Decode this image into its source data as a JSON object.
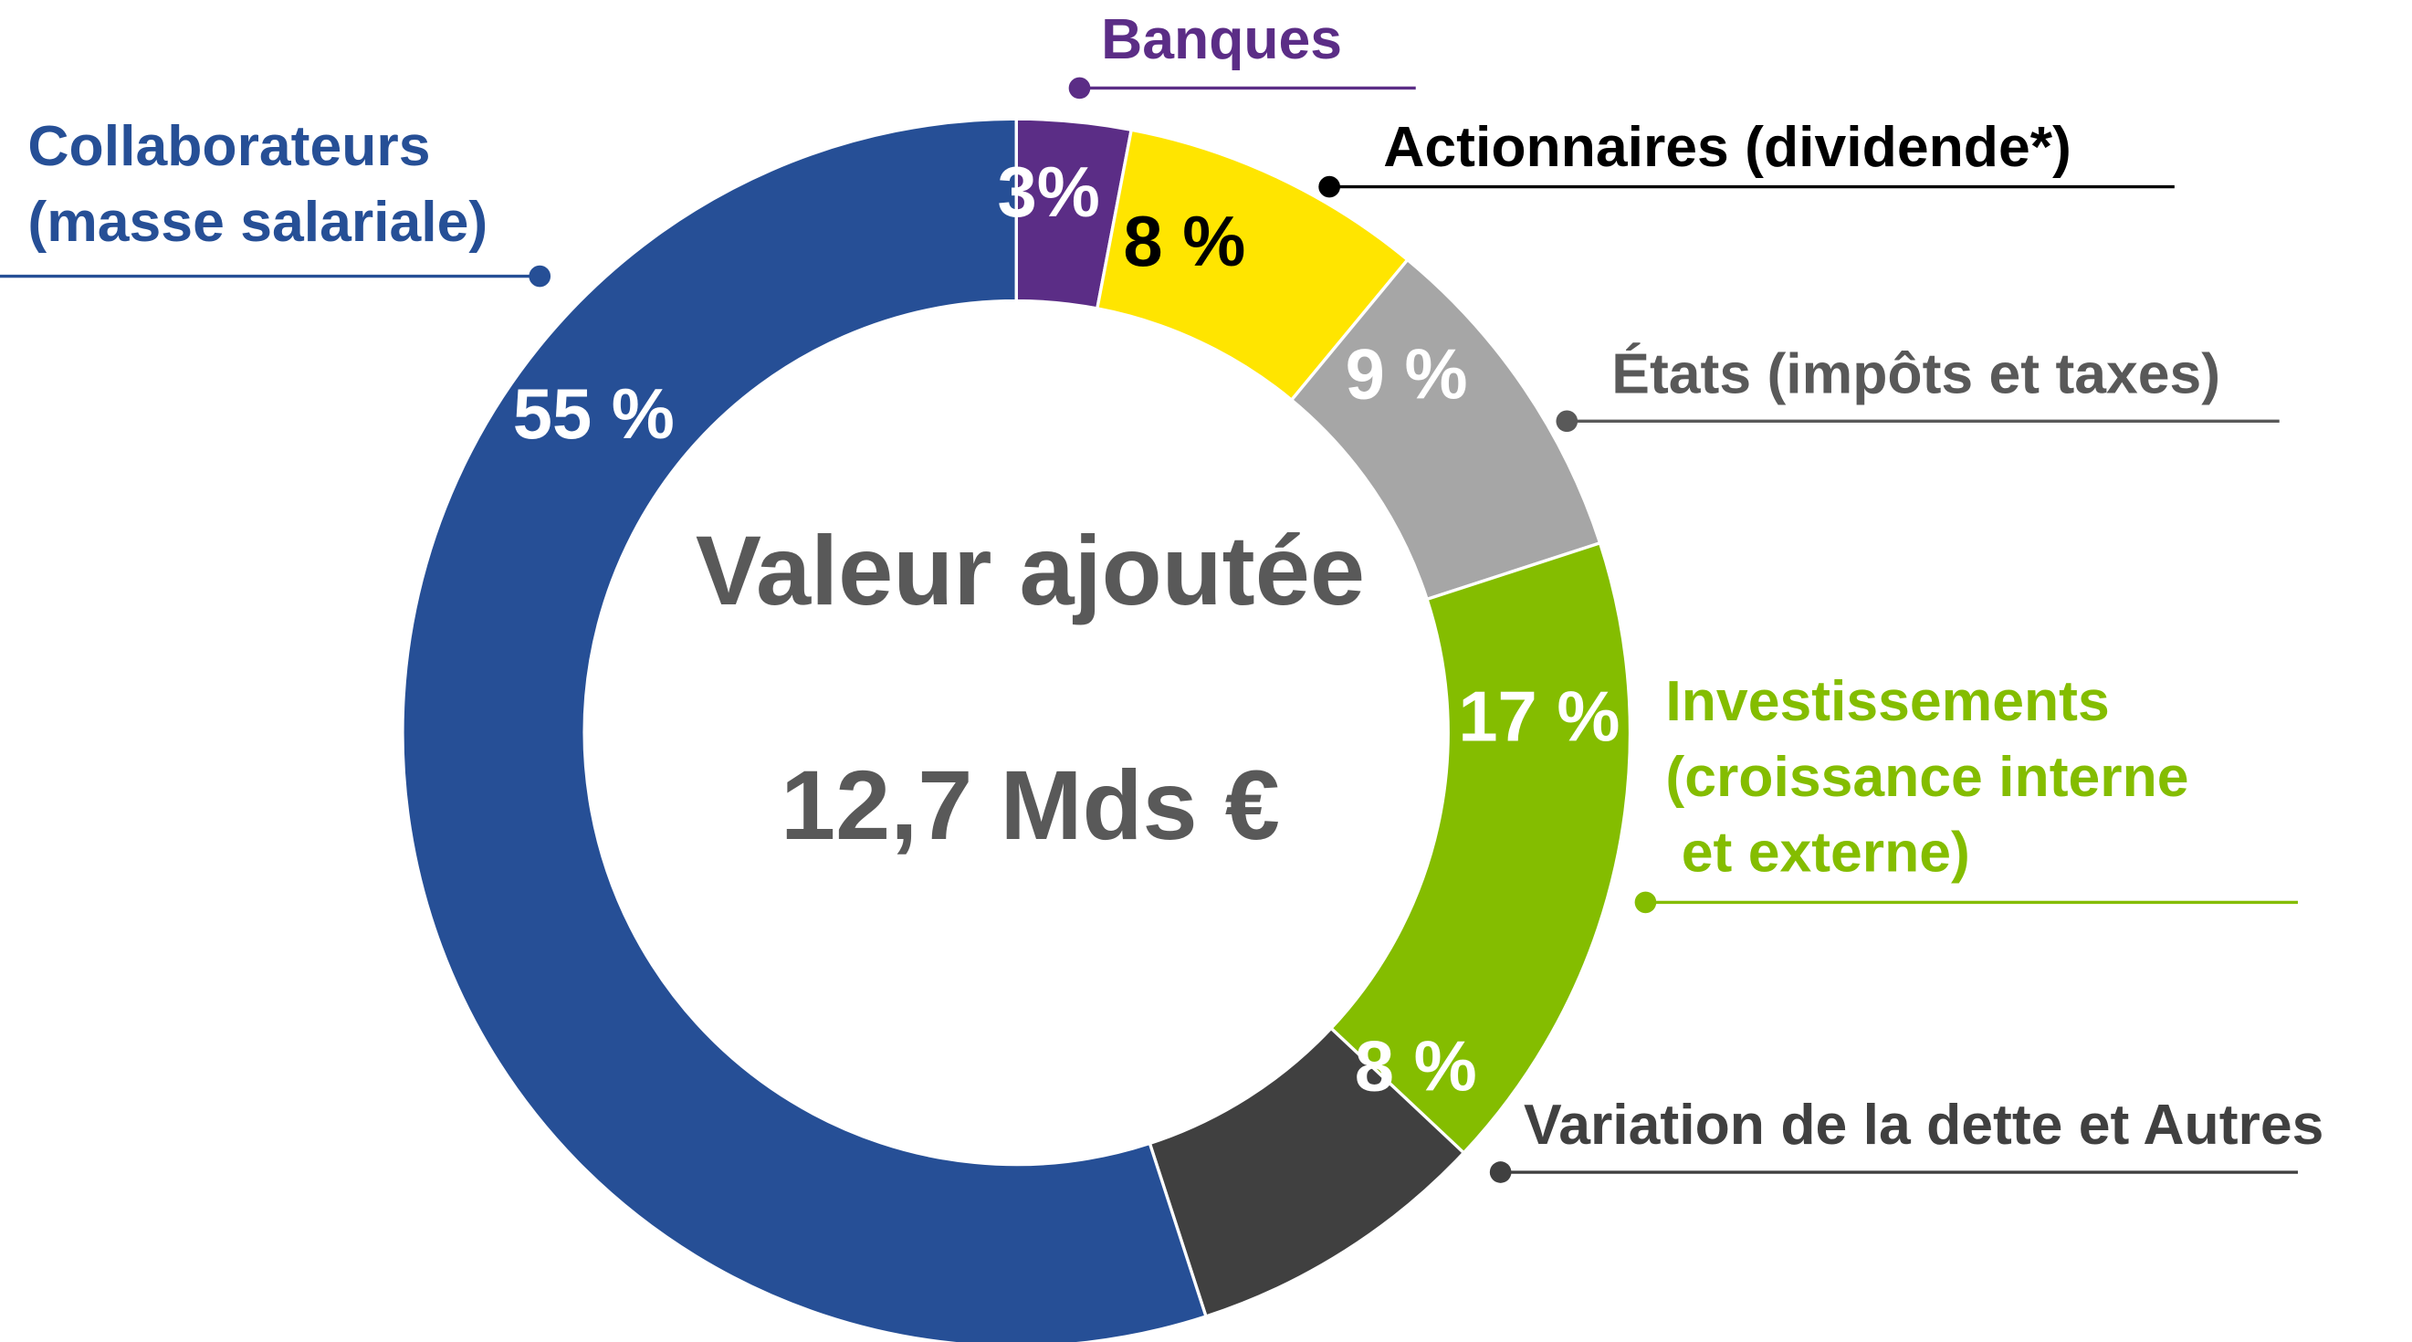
{
  "chart_data": {
    "type": "donut",
    "categories": [
      "Banques",
      "Actionnaires (dividende*)",
      "États (impôts et taxes)",
      "Investissements\n(croissance interne\n et externe)",
      "Variation de la dette et Autres",
      "Collaborateurs\n(masse salariale)"
    ],
    "values": [
      3,
      8,
      9,
      17,
      8,
      55
    ],
    "value_labels": [
      "3%",
      "8 %",
      "9 %",
      "17 %",
      "8 %",
      "55 %"
    ],
    "colors": [
      "#5b2d86",
      "#ffe500",
      "#a6a6a6",
      "#84bd00",
      "#404040",
      "#264f96"
    ],
    "label_colors": [
      "#5b2d86",
      "#000000",
      "#595959",
      "#84bd00",
      "#404040",
      "#264f96"
    ],
    "value_label_colors": [
      "#ffffff",
      "#000000",
      "#ffffff",
      "#ffffff",
      "#ffffff",
      "#ffffff"
    ],
    "center_title": "Valeur ajoutée",
    "center_value": "12,7 Mds €"
  }
}
